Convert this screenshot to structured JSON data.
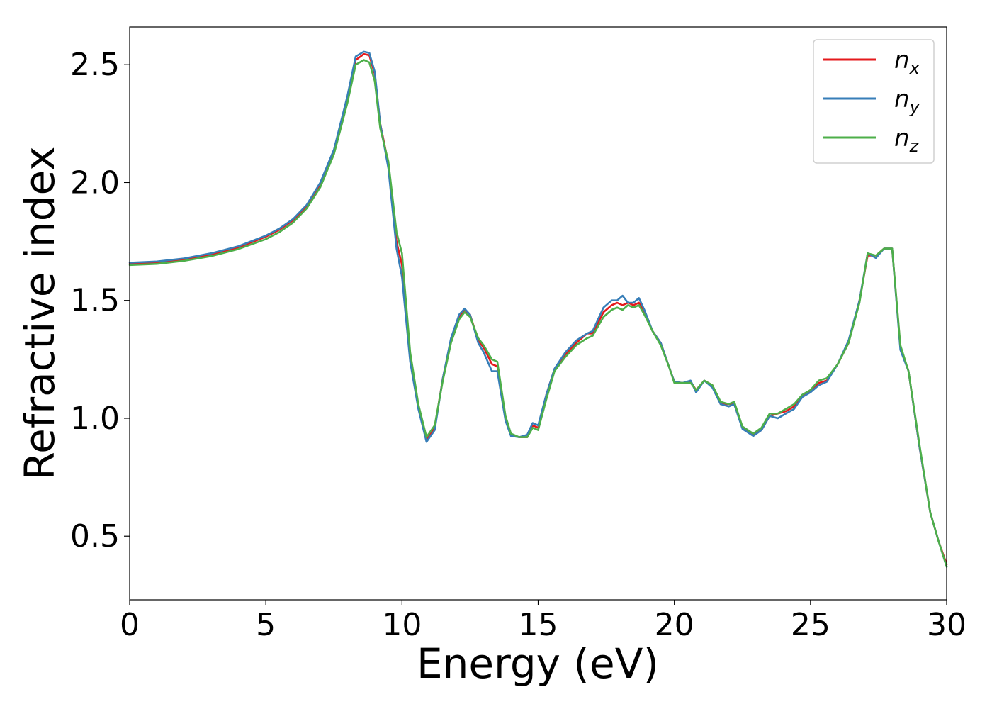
{
  "chart_data": {
    "type": "line",
    "title": "",
    "xlabel": "Energy (eV)",
    "ylabel": "Refractive index",
    "xlim": [
      0,
      30
    ],
    "ylim": [
      0.23,
      2.66
    ],
    "xticks": [
      0,
      5,
      10,
      15,
      20,
      25,
      30
    ],
    "xtick_labels": [
      "0",
      "5",
      "10",
      "15",
      "20",
      "25",
      "30"
    ],
    "yticks": [
      0.5,
      1.0,
      1.5,
      2.0,
      2.5
    ],
    "ytick_labels": [
      "0.5",
      "1.0",
      "1.5",
      "2.0",
      "2.5"
    ],
    "grid": false,
    "legend_position": "top-right",
    "series": [
      {
        "name": "n",
        "subscript": "x",
        "color": "#e41a1c",
        "x": [
          0,
          1,
          2,
          3,
          4,
          5,
          5.5,
          6,
          6.5,
          7,
          7.5,
          8,
          8.3,
          8.6,
          8.8,
          9,
          9.2,
          9.5,
          9.8,
          10,
          10.3,
          10.6,
          10.9,
          11.2,
          11.5,
          11.8,
          12.1,
          12.3,
          12.5,
          12.8,
          13,
          13.3,
          13.5,
          13.8,
          14,
          14.3,
          14.6,
          14.8,
          15,
          15.3,
          15.6,
          16,
          16.4,
          16.8,
          17,
          17.4,
          17.7,
          17.9,
          18.1,
          18.3,
          18.5,
          18.7,
          18.9,
          19.2,
          19.5,
          19.8,
          20,
          20.3,
          20.6,
          20.8,
          21.1,
          21.4,
          21.7,
          22,
          22.2,
          22.5,
          22.9,
          23.2,
          23.5,
          23.8,
          24.1,
          24.4,
          24.7,
          25,
          25.3,
          25.6,
          26,
          26.4,
          26.8,
          27.1,
          27.4,
          27.7,
          28,
          28.3,
          28.6,
          29,
          29.4,
          29.7,
          30
        ],
        "y": [
          1.655,
          1.66,
          1.675,
          1.695,
          1.725,
          1.77,
          1.8,
          1.84,
          1.9,
          1.99,
          2.13,
          2.36,
          2.52,
          2.545,
          2.54,
          2.46,
          2.25,
          2.08,
          1.75,
          1.65,
          1.26,
          1.05,
          0.91,
          0.96,
          1.17,
          1.33,
          1.43,
          1.46,
          1.44,
          1.33,
          1.3,
          1.23,
          1.22,
          1.0,
          0.93,
          0.92,
          0.92,
          0.97,
          0.96,
          1.1,
          1.21,
          1.27,
          1.32,
          1.36,
          1.36,
          1.45,
          1.48,
          1.49,
          1.48,
          1.49,
          1.48,
          1.49,
          1.45,
          1.37,
          1.32,
          1.22,
          1.155,
          1.15,
          1.155,
          1.12,
          1.16,
          1.14,
          1.06,
          1.06,
          1.06,
          0.96,
          0.93,
          0.95,
          1.01,
          1.02,
          1.03,
          1.05,
          1.09,
          1.12,
          1.15,
          1.16,
          1.23,
          1.32,
          1.5,
          1.69,
          1.69,
          1.72,
          1.72,
          1.3,
          1.2,
          0.88,
          0.6,
          0.48,
          0.38
        ]
      },
      {
        "name": "n",
        "subscript": "y",
        "color": "#377eb8",
        "x": [
          0,
          1,
          2,
          3,
          4,
          5,
          5.5,
          6,
          6.5,
          7,
          7.5,
          8,
          8.3,
          8.6,
          8.8,
          9,
          9.2,
          9.5,
          9.8,
          10,
          10.3,
          10.6,
          10.9,
          11.2,
          11.5,
          11.8,
          12.1,
          12.3,
          12.5,
          12.8,
          13,
          13.3,
          13.5,
          13.8,
          14,
          14.3,
          14.6,
          14.8,
          15,
          15.3,
          15.6,
          16,
          16.4,
          16.8,
          17,
          17.4,
          17.7,
          17.9,
          18.1,
          18.3,
          18.5,
          18.7,
          18.9,
          19.2,
          19.5,
          19.8,
          20,
          20.3,
          20.6,
          20.8,
          21.1,
          21.4,
          21.7,
          22,
          22.2,
          22.5,
          22.9,
          23.2,
          23.5,
          23.8,
          24.1,
          24.4,
          24.7,
          25,
          25.3,
          25.6,
          26,
          26.4,
          26.8,
          27.1,
          27.4,
          27.7,
          28,
          28.3,
          28.6,
          29,
          29.4,
          29.7,
          30
        ],
        "y": [
          1.66,
          1.665,
          1.678,
          1.7,
          1.73,
          1.775,
          1.805,
          1.845,
          1.905,
          2.0,
          2.14,
          2.37,
          2.535,
          2.555,
          2.55,
          2.47,
          2.25,
          2.06,
          1.72,
          1.6,
          1.24,
          1.04,
          0.9,
          0.95,
          1.17,
          1.34,
          1.44,
          1.465,
          1.44,
          1.32,
          1.28,
          1.2,
          1.2,
          0.99,
          0.925,
          0.92,
          0.93,
          0.98,
          0.97,
          1.1,
          1.21,
          1.28,
          1.33,
          1.36,
          1.37,
          1.47,
          1.5,
          1.5,
          1.52,
          1.49,
          1.49,
          1.51,
          1.46,
          1.37,
          1.32,
          1.22,
          1.155,
          1.15,
          1.16,
          1.11,
          1.16,
          1.13,
          1.06,
          1.05,
          1.06,
          0.955,
          0.925,
          0.95,
          1.01,
          1.0,
          1.02,
          1.04,
          1.09,
          1.11,
          1.14,
          1.155,
          1.23,
          1.33,
          1.5,
          1.7,
          1.68,
          1.72,
          1.72,
          1.29,
          1.2,
          0.88,
          0.6,
          0.48,
          0.37
        ]
      },
      {
        "name": "n",
        "subscript": "z",
        "color": "#4daf4a",
        "x": [
          0,
          1,
          2,
          3,
          4,
          5,
          5.5,
          6,
          6.5,
          7,
          7.5,
          8,
          8.3,
          8.6,
          8.8,
          9,
          9.2,
          9.5,
          9.8,
          10,
          10.3,
          10.6,
          10.9,
          11.2,
          11.5,
          11.8,
          12.1,
          12.3,
          12.5,
          12.8,
          13,
          13.3,
          13.5,
          13.8,
          14,
          14.3,
          14.6,
          14.8,
          15,
          15.3,
          15.6,
          16,
          16.4,
          16.8,
          17,
          17.4,
          17.7,
          17.9,
          18.1,
          18.3,
          18.5,
          18.7,
          18.9,
          19.2,
          19.5,
          19.8,
          20,
          20.3,
          20.6,
          20.8,
          21.1,
          21.4,
          21.7,
          22,
          22.2,
          22.5,
          22.9,
          23.2,
          23.5,
          23.8,
          24.1,
          24.4,
          24.7,
          25,
          25.3,
          25.6,
          26,
          26.4,
          26.8,
          27.1,
          27.4,
          27.7,
          28,
          28.3,
          28.6,
          29,
          29.4,
          29.7,
          30
        ],
        "y": [
          1.65,
          1.655,
          1.668,
          1.688,
          1.718,
          1.76,
          1.79,
          1.83,
          1.89,
          1.98,
          2.12,
          2.34,
          2.5,
          2.52,
          2.51,
          2.43,
          2.23,
          2.09,
          1.79,
          1.7,
          1.28,
          1.06,
          0.92,
          0.97,
          1.16,
          1.32,
          1.42,
          1.45,
          1.43,
          1.34,
          1.31,
          1.25,
          1.24,
          1.01,
          0.935,
          0.92,
          0.92,
          0.96,
          0.95,
          1.08,
          1.2,
          1.26,
          1.31,
          1.34,
          1.35,
          1.43,
          1.46,
          1.47,
          1.46,
          1.48,
          1.47,
          1.48,
          1.44,
          1.37,
          1.31,
          1.22,
          1.15,
          1.15,
          1.15,
          1.12,
          1.16,
          1.14,
          1.07,
          1.06,
          1.07,
          0.965,
          0.935,
          0.96,
          1.02,
          1.02,
          1.04,
          1.06,
          1.1,
          1.12,
          1.16,
          1.17,
          1.23,
          1.32,
          1.49,
          1.7,
          1.69,
          1.72,
          1.72,
          1.31,
          1.2,
          0.89,
          0.6,
          0.48,
          0.37
        ]
      }
    ]
  }
}
